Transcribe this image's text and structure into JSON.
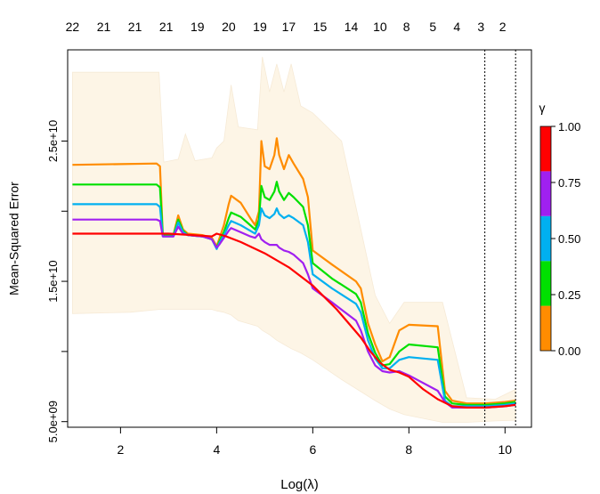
{
  "chart_data": {
    "type": "line",
    "title": "",
    "xlabel": "Log(λ)",
    "ylabel": "Mean-Squared Error",
    "xlim": [
      0.9,
      10.55
    ],
    "ylim": [
      4600000000.0,
      31500000000.0
    ],
    "xticks": [
      2,
      4,
      6,
      8,
      10
    ],
    "xtick_labels": [
      "2",
      "4",
      "6",
      "8",
      "10"
    ],
    "yticks": [
      5000000000.0,
      10000000000.0,
      15000000000.0,
      20000000000.0,
      25000000000.0
    ],
    "ytick_labels": [
      "5.0e+09",
      "",
      "1.5e+10",
      "",
      "2.5e+10"
    ],
    "top_axis": {
      "positions": [
        1.0,
        1.65,
        2.3,
        2.95,
        3.6,
        4.25,
        4.9,
        5.5,
        6.15,
        6.8,
        7.4,
        7.95,
        8.5,
        9.0,
        9.5,
        9.95
      ],
      "labels": [
        "22",
        "21",
        "21",
        "21",
        "19",
        "20",
        "19",
        "17",
        "15",
        "14",
        "10",
        "8",
        "5",
        "4",
        "3",
        "2"
      ]
    },
    "vlines": [
      9.58,
      10.22
    ],
    "band": {
      "color": "#fdf5e6",
      "x": [
        1.0,
        2.2,
        2.8,
        2.9,
        3.2,
        3.35,
        3.55,
        3.9,
        4.0,
        4.15,
        4.3,
        4.45,
        4.85,
        4.95,
        5.1,
        5.25,
        5.4,
        5.55,
        5.75,
        6.0,
        6.6,
        7.3,
        7.6,
        7.9,
        8.7,
        9.2,
        9.8,
        10.22
      ],
      "upper": [
        29900000000.0,
        29900000000.0,
        29900000000.0,
        23500000000.0,
        23700000000.0,
        25500000000.0,
        23600000000.0,
        23800000000.0,
        24500000000.0,
        25000000000.0,
        29000000000.0,
        26000000000.0,
        25800000000.0,
        31000000000.0,
        28500000000.0,
        30500000000.0,
        28500000000.0,
        30500000000.0,
        27500000000.0,
        27000000000.0,
        25000000000.0,
        14000000000.0,
        12000000000.0,
        13500000000.0,
        13500000000.0,
        6700000000.0,
        6600000000.0,
        7300000000.0
      ],
      "lower": [
        12700000000.0,
        12800000000.0,
        13000000000.0,
        13000000000.0,
        13000000000.0,
        13000000000.0,
        13000000000.0,
        13000000000.0,
        12900000000.0,
        12800000000.0,
        12600000000.0,
        12200000000.0,
        11800000000.0,
        11500000000.0,
        11200000000.0,
        10800000000.0,
        10500000000.0,
        10200000000.0,
        9900000000.0,
        9400000000.0,
        8000000000.0,
        6500000000.0,
        5900000000.0,
        5500000000.0,
        4950000000.0,
        4950000000.0,
        5050000000.0,
        5100000000.0
      ]
    },
    "legend": {
      "title": "γ",
      "placement": "right",
      "ticks": [
        "0.00",
        "0.25",
        "0.50",
        "0.75",
        "1.00"
      ],
      "colors": [
        "#ff8c00",
        "#00e000",
        "#00b0f0",
        "#a020f0",
        "#ff0000"
      ]
    },
    "series": [
      {
        "color": "#ff8c00",
        "x": [
          1.0,
          2.75,
          2.82,
          2.88,
          3.1,
          3.2,
          3.3,
          3.4,
          3.7,
          3.9,
          4.0,
          4.05,
          4.15,
          4.25,
          4.3,
          4.5,
          4.7,
          4.8,
          4.88,
          4.93,
          5.0,
          5.1,
          5.2,
          5.25,
          5.3,
          5.4,
          5.5,
          5.6,
          5.8,
          5.9,
          6.0,
          6.4,
          6.9,
          7.0,
          7.15,
          7.3,
          7.45,
          7.6,
          7.8,
          8.0,
          8.6,
          8.75,
          8.9,
          9.2,
          9.6,
          10.0,
          10.22
        ],
        "y": [
          23300000000.0,
          23400000000.0,
          23200000000.0,
          18300000000.0,
          18300000000.0,
          19700000000.0,
          18700000000.0,
          18400000000.0,
          18300000000.0,
          18100000000.0,
          17500000000.0,
          18000000000.0,
          19000000000.0,
          20500000000.0,
          21100000000.0,
          20600000000.0,
          19500000000.0,
          19000000000.0,
          20000000000.0,
          25000000000.0,
          23200000000.0,
          23000000000.0,
          24000000000.0,
          25200000000.0,
          24000000000.0,
          23000000000.0,
          24000000000.0,
          23400000000.0,
          22300000000.0,
          21000000000.0,
          17200000000.0,
          16200000000.0,
          15000000000.0,
          14500000000.0,
          12000000000.0,
          10500000000.0,
          9300000000.0,
          9600000000.0,
          11500000000.0,
          11900000000.0,
          11800000000.0,
          7200000000.0,
          6500000000.0,
          6300000000.0,
          6300000000.0,
          6400000000.0,
          6500000000.0
        ]
      },
      {
        "color": "#00e000",
        "x": [
          1.0,
          2.75,
          2.82,
          2.88,
          3.1,
          3.2,
          3.3,
          3.4,
          3.7,
          3.9,
          4.0,
          4.05,
          4.15,
          4.25,
          4.3,
          4.5,
          4.7,
          4.8,
          4.88,
          4.93,
          5.0,
          5.1,
          5.2,
          5.25,
          5.3,
          5.4,
          5.5,
          5.6,
          5.8,
          5.9,
          6.0,
          6.4,
          6.9,
          7.0,
          7.15,
          7.3,
          7.45,
          7.6,
          7.8,
          8.0,
          8.6,
          8.75,
          8.9,
          9.2,
          9.6,
          10.0,
          10.22
        ],
        "y": [
          21900000000.0,
          21900000000.0,
          21700000000.0,
          18300000000.0,
          18300000000.0,
          19400000000.0,
          18600000000.0,
          18300000000.0,
          18200000000.0,
          18000000000.0,
          17400000000.0,
          17800000000.0,
          18500000000.0,
          19500000000.0,
          19900000000.0,
          19600000000.0,
          19000000000.0,
          18700000000.0,
          19400000000.0,
          21800000000.0,
          21000000000.0,
          20800000000.0,
          21400000000.0,
          22100000000.0,
          21400000000.0,
          20800000000.0,
          21300000000.0,
          21000000000.0,
          20300000000.0,
          19000000000.0,
          16300000000.0,
          15200000000.0,
          14100000000.0,
          13500000000.0,
          11300000000.0,
          9900000000.0,
          9000000000.0,
          9100000000.0,
          10000000000.0,
          10500000000.0,
          10300000000.0,
          6800000000.0,
          6300000000.0,
          6200000000.0,
          6200000000.0,
          6300000000.0,
          6400000000.0
        ]
      },
      {
        "color": "#00b0f0",
        "x": [
          1.0,
          2.75,
          2.82,
          2.88,
          3.1,
          3.2,
          3.3,
          3.4,
          3.7,
          3.9,
          4.0,
          4.05,
          4.15,
          4.25,
          4.3,
          4.5,
          4.7,
          4.8,
          4.88,
          4.93,
          5.0,
          5.1,
          5.2,
          5.25,
          5.3,
          5.4,
          5.5,
          5.6,
          5.8,
          5.9,
          6.0,
          6.4,
          6.9,
          7.0,
          7.15,
          7.3,
          7.45,
          7.6,
          7.8,
          8.0,
          8.6,
          8.75,
          8.9,
          9.2,
          9.6,
          10.0,
          10.22
        ],
        "y": [
          20500000000.0,
          20500000000.0,
          20300000000.0,
          18200000000.0,
          18200000000.0,
          19200000000.0,
          18500000000.0,
          18300000000.0,
          18200000000.0,
          18000000000.0,
          17300000000.0,
          17700000000.0,
          18300000000.0,
          19000000000.0,
          19300000000.0,
          19000000000.0,
          18600000000.0,
          18400000000.0,
          19000000000.0,
          20200000000.0,
          19700000000.0,
          19500000000.0,
          19800000000.0,
          20200000000.0,
          19800000000.0,
          19500000000.0,
          19700000000.0,
          19500000000.0,
          19000000000.0,
          17800000000.0,
          15500000000.0,
          14500000000.0,
          13400000000.0,
          12800000000.0,
          10800000000.0,
          9500000000.0,
          8800000000.0,
          8800000000.0,
          9400000000.0,
          9600000000.0,
          9400000000.0,
          6500000000.0,
          6100000000.0,
          6100000000.0,
          6100000000.0,
          6200000000.0,
          6300000000.0
        ]
      },
      {
        "color": "#a020f0",
        "x": [
          1.0,
          2.75,
          2.82,
          2.88,
          3.1,
          3.2,
          3.3,
          3.4,
          3.7,
          3.9,
          4.0,
          4.05,
          4.15,
          4.25,
          4.3,
          4.5,
          4.7,
          4.8,
          4.88,
          4.93,
          5.0,
          5.1,
          5.2,
          5.25,
          5.3,
          5.4,
          5.5,
          5.6,
          5.8,
          5.9,
          6.0,
          6.4,
          6.9,
          7.0,
          7.15,
          7.3,
          7.45,
          7.6,
          7.8,
          8.0,
          8.6,
          8.75,
          8.9,
          9.2,
          9.6,
          10.0,
          10.22
        ],
        "y": [
          19400000000.0,
          19400000000.0,
          19300000000.0,
          18200000000.0,
          18200000000.0,
          18900000000.0,
          18400000000.0,
          18300000000.0,
          18200000000.0,
          18000000000.0,
          17400000000.0,
          17600000000.0,
          18100000000.0,
          18600000000.0,
          18800000000.0,
          18500000000.0,
          18200000000.0,
          18100000000.0,
          18400000000.0,
          18000000000.0,
          17800000000.0,
          17600000000.0,
          17600000000.0,
          17600000000.0,
          17400000000.0,
          17200000000.0,
          17100000000.0,
          16900000000.0,
          16300000000.0,
          15500000000.0,
          14500000000.0,
          13500000000.0,
          12200000000.0,
          11500000000.0,
          10000000000.0,
          9000000000.0,
          8600000000.0,
          8500000000.0,
          8600000000.0,
          8300000000.0,
          7200000000.0,
          6400000000.0,
          6000000000.0,
          6000000000.0,
          6000000000.0,
          6100000000.0,
          6200000000.0
        ]
      },
      {
        "color": "#ff0000",
        "x": [
          1.0,
          2.0,
          2.8,
          3.0,
          3.5,
          3.9,
          4.0,
          4.2,
          4.5,
          5.0,
          5.5,
          6.0,
          6.5,
          7.0,
          7.2,
          7.4,
          7.6,
          7.8,
          8.0,
          8.3,
          8.6,
          8.9,
          9.2,
          9.6,
          10.0,
          10.22
        ],
        "y": [
          18400000000.0,
          18400000000.0,
          18400000000.0,
          18400000000.0,
          18300000000.0,
          18200000000.0,
          18400000000.0,
          18200000000.0,
          17800000000.0,
          17000000000.0,
          16000000000.0,
          14700000000.0,
          13000000000.0,
          11000000000.0,
          10000000000.0,
          9200000000.0,
          8700000000.0,
          8500000000.0,
          8200000000.0,
          7300000000.0,
          6600000000.0,
          6100000000.0,
          6000000000.0,
          6000000000.0,
          6100000000.0,
          6200000000.0
        ]
      }
    ]
  }
}
